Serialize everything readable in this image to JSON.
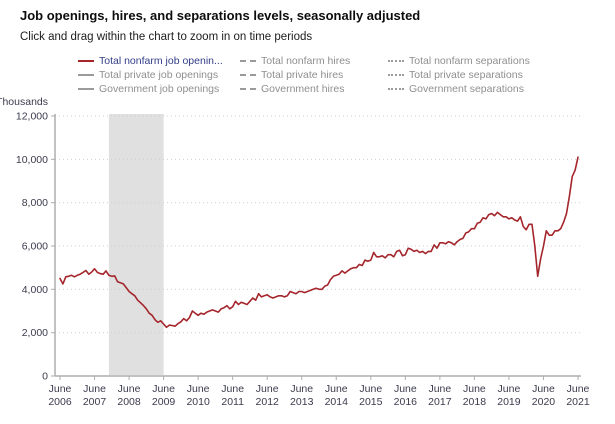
{
  "header": {
    "title": "Job openings, hires, and separations levels, seasonally adjusted",
    "subtitle": "Click and drag within the chart to zoom in on time periods"
  },
  "colors": {
    "accent_red": "#a4262c",
    "inactive_gray": "#9b9b9b",
    "active_legend_text": "#313d87",
    "recession_band": "#e0e0e0",
    "gridline": "#d0d0d0",
    "axis": "#adadad",
    "axis_text": "#3b3b4d"
  },
  "legend": {
    "columns": [
      {
        "items": [
          {
            "label": "Total nonfarm job openin...",
            "line_style": "solid",
            "color": "#a4262c",
            "active": true
          },
          {
            "label": "Total private job openings",
            "line_style": "solid",
            "color": "#9b9b9b",
            "active": false
          },
          {
            "label": "Government job openings",
            "line_style": "solid",
            "color": "#9b9b9b",
            "active": false
          }
        ]
      },
      {
        "items": [
          {
            "label": "Total nonfarm hires",
            "line_style": "dashed",
            "color": "#9b9b9b",
            "active": false
          },
          {
            "label": "Total private hires",
            "line_style": "dashed",
            "color": "#9b9b9b",
            "active": false
          },
          {
            "label": "Government hires",
            "line_style": "dashed",
            "color": "#9b9b9b",
            "active": false
          }
        ]
      },
      {
        "items": [
          {
            "label": "Total nonfarm separations",
            "line_style": "dotted",
            "color": "#9b9b9b",
            "active": false
          },
          {
            "label": "Total private separations",
            "line_style": "dotted",
            "color": "#9b9b9b",
            "active": false
          },
          {
            "label": "Government separations",
            "line_style": "dotted",
            "color": "#9b9b9b",
            "active": false
          }
        ]
      }
    ]
  },
  "chart_data": {
    "type": "line",
    "title": "Job openings, hires, and separations levels, seasonally adjusted",
    "y_axis": {
      "label": "Thousands",
      "tick_values": [
        0,
        2000,
        4000,
        6000,
        8000,
        10000,
        12000
      ],
      "tick_labels": [
        "0",
        "2,000",
        "4,000",
        "6,000",
        "8,000",
        "10,000",
        "12,000"
      ],
      "max": 12000,
      "grid": "dotted"
    },
    "x_axis": {
      "month_label": "June",
      "years": [
        "2006",
        "2007",
        "2008",
        "2009",
        "2010",
        "2011",
        "2012",
        "2013",
        "2014",
        "2015",
        "2016",
        "2017",
        "2018",
        "2019",
        "2020",
        "2021"
      ],
      "interval": "monthly",
      "start": "June 2006",
      "end": "June 2021"
    },
    "shaded_region": {
      "name": "recession-band",
      "start_month_index": 17,
      "end_month_index": 36
    },
    "series": [
      {
        "name": "Total nonfarm job openings",
        "color": "#a4262c",
        "style": "solid",
        "values": [
          4500,
          4250,
          4580,
          4600,
          4650,
          4580,
          4650,
          4700,
          4780,
          4870,
          4700,
          4800,
          4950,
          4780,
          4720,
          4700,
          4850,
          4650,
          4600,
          4620,
          4350,
          4300,
          4250,
          4080,
          3900,
          3800,
          3700,
          3500,
          3380,
          3250,
          3100,
          2900,
          2800,
          2600,
          2480,
          2550,
          2400,
          2250,
          2350,
          2330,
          2300,
          2420,
          2500,
          2650,
          2550,
          2700,
          3000,
          2900,
          2800,
          2900,
          2850,
          2950,
          3000,
          3050,
          3000,
          2950,
          3100,
          3150,
          3250,
          3100,
          3200,
          3450,
          3300,
          3400,
          3350,
          3300,
          3450,
          3600,
          3500,
          3800,
          3650,
          3700,
          3750,
          3650,
          3600,
          3650,
          3700,
          3700,
          3650,
          3700,
          3900,
          3850,
          3800,
          3900,
          3900,
          3850,
          3900,
          3950,
          4000,
          4050,
          4000,
          4000,
          4150,
          4200,
          4450,
          4600,
          4650,
          4700,
          4850,
          4750,
          4850,
          4950,
          5000,
          5000,
          5150,
          5100,
          5350,
          5300,
          5350,
          5700,
          5500,
          5500,
          5550,
          5450,
          5600,
          5600,
          5500,
          5750,
          5800,
          5550,
          5600,
          5900,
          5850,
          5750,
          5800,
          5700,
          5750,
          5650,
          5750,
          5750,
          6050,
          5900,
          6150,
          6150,
          6100,
          6200,
          6150,
          6050,
          6200,
          6300,
          6350,
          6600,
          6650,
          6800,
          6800,
          7050,
          7100,
          7300,
          7250,
          7450,
          7500,
          7400,
          7550,
          7450,
          7350,
          7350,
          7250,
          7300,
          7200,
          7150,
          7350,
          6900,
          6750,
          7000,
          7000,
          6000,
          4600,
          5400,
          6000,
          6700,
          6500,
          6500,
          6700,
          6700,
          6800,
          7100,
          7500,
          8300,
          9200,
          9500,
          10100
        ]
      }
    ]
  }
}
